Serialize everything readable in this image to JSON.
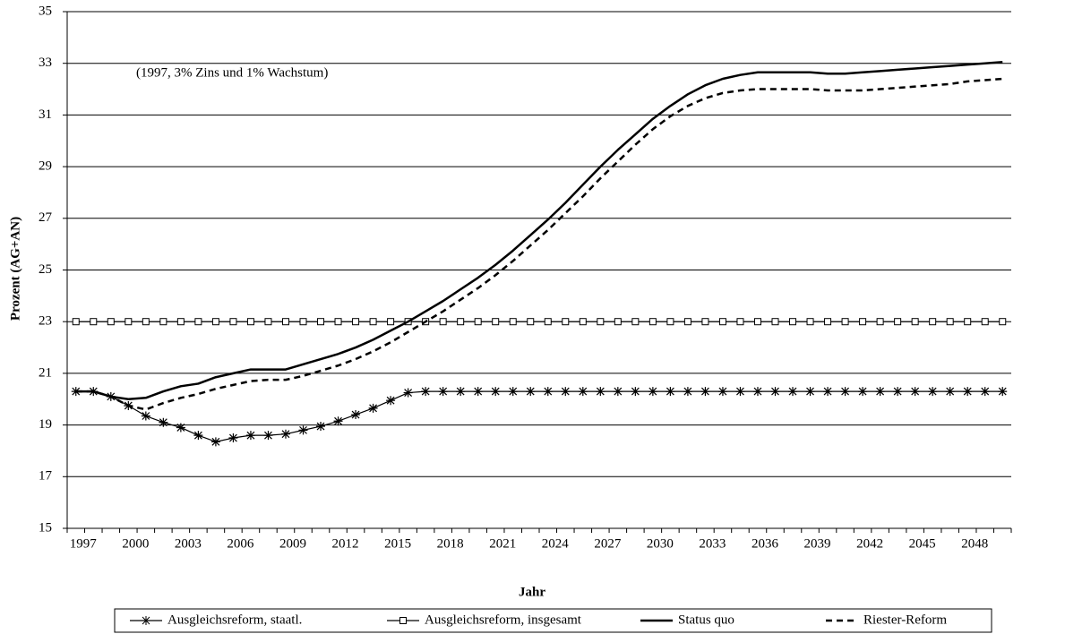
{
  "chart_data": {
    "type": "line",
    "annotation": "(1997, 3% Zins und 1% Wachstum)",
    "x_label": "Jahr",
    "y_label": "Prozent (AG+AN)",
    "x": [
      1997,
      1998,
      1999,
      2000,
      2001,
      2002,
      2003,
      2004,
      2005,
      2006,
      2007,
      2008,
      2009,
      2010,
      2011,
      2012,
      2013,
      2014,
      2015,
      2016,
      2017,
      2018,
      2019,
      2020,
      2021,
      2022,
      2023,
      2024,
      2025,
      2026,
      2027,
      2028,
      2029,
      2030,
      2031,
      2032,
      2033,
      2034,
      2035,
      2036,
      2037,
      2038,
      2039,
      2040,
      2041,
      2042,
      2043,
      2044,
      2045,
      2046,
      2047,
      2048,
      2049,
      2050
    ],
    "xlim": [
      1996.5,
      2050.5
    ],
    "xticks": [
      1997,
      2000,
      2003,
      2006,
      2009,
      2012,
      2015,
      2018,
      2021,
      2024,
      2027,
      2030,
      2033,
      2036,
      2039,
      2042,
      2045,
      2048
    ],
    "ylim": [
      15,
      35
    ],
    "yticks": [
      15,
      17,
      19,
      21,
      23,
      25,
      27,
      29,
      31,
      33,
      35
    ],
    "grid": true,
    "legend": "bottom",
    "series": [
      {
        "name": "Ausgleichsreform, staatl.",
        "color": "#000000",
        "marker": "asterisk",
        "line_style": "solid",
        "values": [
          20.3,
          20.3,
          20.1,
          19.75,
          19.35,
          19.1,
          18.9,
          18.6,
          18.35,
          18.5,
          18.6,
          18.6,
          18.65,
          18.8,
          18.95,
          19.15,
          19.4,
          19.65,
          19.95,
          20.25,
          20.3,
          20.3,
          20.3,
          20.3,
          20.3,
          20.3,
          20.3,
          20.3,
          20.3,
          20.3,
          20.3,
          20.3,
          20.3,
          20.3,
          20.3,
          20.3,
          20.3,
          20.3,
          20.3,
          20.3,
          20.3,
          20.3,
          20.3,
          20.3,
          20.3,
          20.3,
          20.3,
          20.3,
          20.3,
          20.3,
          20.3,
          20.3,
          20.3,
          20.3
        ]
      },
      {
        "name": "Ausgleichsreform, insgesamt",
        "color": "#000000",
        "marker": "square",
        "line_style": "solid",
        "values": [
          23,
          23,
          23,
          23,
          23,
          23,
          23,
          23,
          23,
          23,
          23,
          23,
          23,
          23,
          23,
          23,
          23,
          23,
          23,
          23,
          23,
          23,
          23,
          23,
          23,
          23,
          23,
          23,
          23,
          23,
          23,
          23,
          23,
          23,
          23,
          23,
          23,
          23,
          23,
          23,
          23,
          23,
          23,
          23,
          23,
          23,
          23,
          23,
          23,
          23,
          23,
          23,
          23,
          23
        ]
      },
      {
        "name": "Status quo",
        "color": "#000000",
        "marker": "none",
        "line_style": "solid",
        "values": [
          20.3,
          20.3,
          20.1,
          20.0,
          20.05,
          20.3,
          20.5,
          20.6,
          20.85,
          21.0,
          21.15,
          21.15,
          21.15,
          21.35,
          21.55,
          21.75,
          22.0,
          22.3,
          22.65,
          23.0,
          23.4,
          23.8,
          24.25,
          24.7,
          25.2,
          25.75,
          26.35,
          26.95,
          27.6,
          28.3,
          29.0,
          29.65,
          30.25,
          30.85,
          31.35,
          31.8,
          32.15,
          32.4,
          32.55,
          32.65,
          32.65,
          32.65,
          32.65,
          32.6,
          32.6,
          32.65,
          32.7,
          32.75,
          32.8,
          32.85,
          32.9,
          32.95,
          33.0,
          33.05
        ]
      },
      {
        "name": "Riester-Reform",
        "color": "#000000",
        "marker": "none",
        "line_style": "dashed",
        "values": [
          20.3,
          20.3,
          20.1,
          19.75,
          19.6,
          19.85,
          20.05,
          20.2,
          20.4,
          20.55,
          20.7,
          20.75,
          20.75,
          20.9,
          21.1,
          21.3,
          21.55,
          21.85,
          22.2,
          22.6,
          23.0,
          23.4,
          23.85,
          24.3,
          24.8,
          25.35,
          25.95,
          26.55,
          27.2,
          27.85,
          28.55,
          29.2,
          29.85,
          30.45,
          30.95,
          31.35,
          31.65,
          31.85,
          31.95,
          32.0,
          32.0,
          32.0,
          32.0,
          31.95,
          31.95,
          31.95,
          32.0,
          32.05,
          32.1,
          32.15,
          32.2,
          32.3,
          32.35,
          32.4
        ]
      }
    ]
  }
}
